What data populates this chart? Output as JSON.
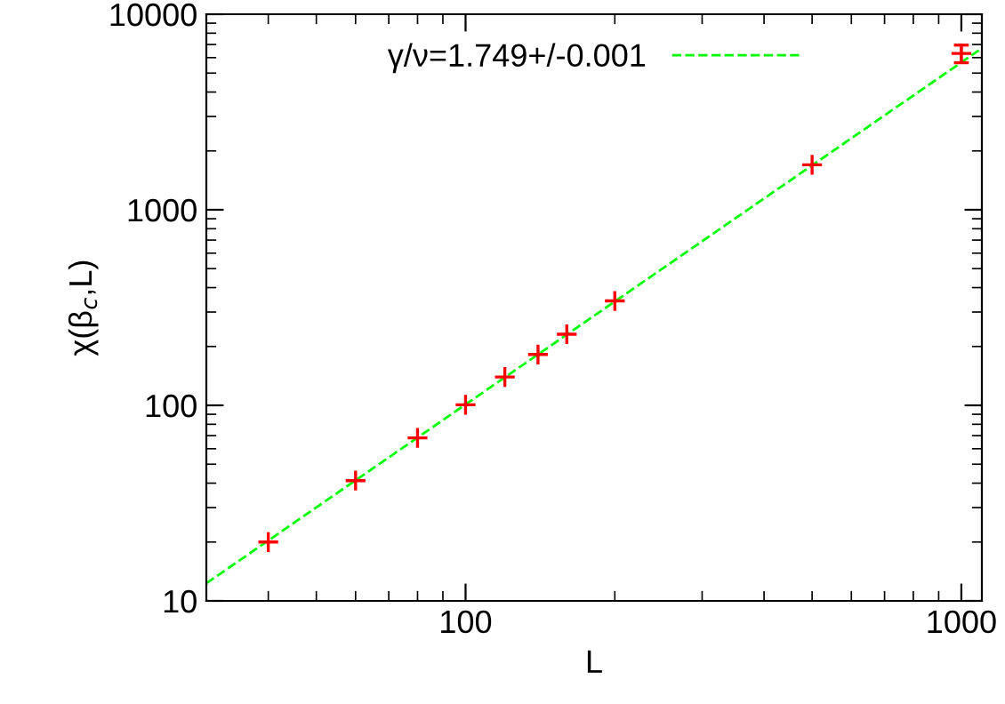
{
  "chart_data": {
    "type": "scatter",
    "xlabel": "L",
    "ylabel": "χ(β$_{c}$,L)",
    "log": "xy",
    "xlim": [
      30,
      1100
    ],
    "ylim": [
      10,
      10000
    ],
    "xticks": [
      100,
      1000
    ],
    "yticks": [
      10,
      100,
      1000,
      10000
    ],
    "grid": false,
    "legend": "top",
    "series": [
      {
        "color": "#ff0000",
        "marker": "cross",
        "x": [
          40,
          60,
          80,
          100,
          120,
          140,
          160,
          200,
          500,
          1000
        ],
        "values": [
          20.0,
          41.2,
          68.2,
          100.7,
          139.7,
          182,
          231,
          342,
          1698,
          6300
        ],
        "errors": [
          null,
          null,
          null,
          null,
          null,
          null,
          null,
          null,
          null,
          650
        ]
      },
      {
        "type": "line",
        "name": "γ/ν=1.749+/-0.001",
        "color": "#00ff00",
        "line_style": "dashed",
        "marker": "none",
        "x": [
          30,
          1100
        ],
        "values": [
          12.3,
          6700
        ]
      }
    ]
  }
}
